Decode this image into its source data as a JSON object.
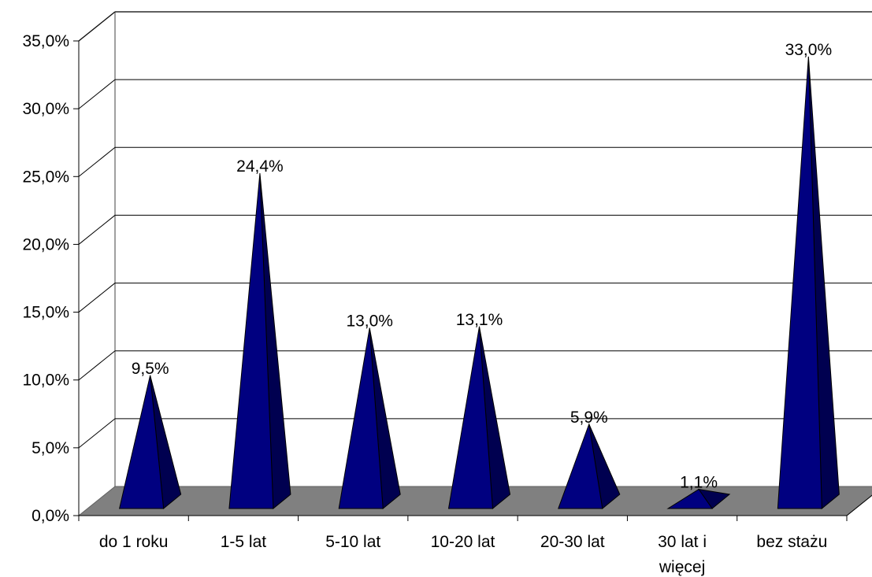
{
  "chart_data": {
    "type": "bar",
    "bar_shape": "pyramid",
    "three_d": true,
    "categories": [
      "do 1 roku",
      "1-5 lat",
      "5-10 lat",
      "10-20 lat",
      "20-30 lat",
      "30 lat i więcej",
      "bez stażu"
    ],
    "category_lines": [
      [
        "do 1 roku"
      ],
      [
        "1-5 lat"
      ],
      [
        "5-10 lat"
      ],
      [
        "10-20 lat"
      ],
      [
        "20-30 lat"
      ],
      [
        "30 lat i",
        "więcej"
      ],
      [
        "bez stażu"
      ]
    ],
    "values": [
      9.5,
      24.4,
      13.0,
      13.1,
      5.9,
      1.1,
      33.0
    ],
    "data_labels": [
      "9,5%",
      "24,4%",
      "13,0%",
      "13,1%",
      "5,9%",
      "1,1%",
      "33,0%"
    ],
    "y_ticks": [
      "0,0%",
      "5,0%",
      "10,0%",
      "15,0%",
      "20,0%",
      "25,0%",
      "30,0%",
      "35,0%"
    ],
    "ylim": [
      0,
      35
    ],
    "y_step": 5,
    "grid": true,
    "legend": "none",
    "colors": {
      "bar_front": "#000080",
      "bar_side": "#000050",
      "floor": "#808080",
      "grid": "#000000",
      "wall_edge": "#808080"
    }
  }
}
